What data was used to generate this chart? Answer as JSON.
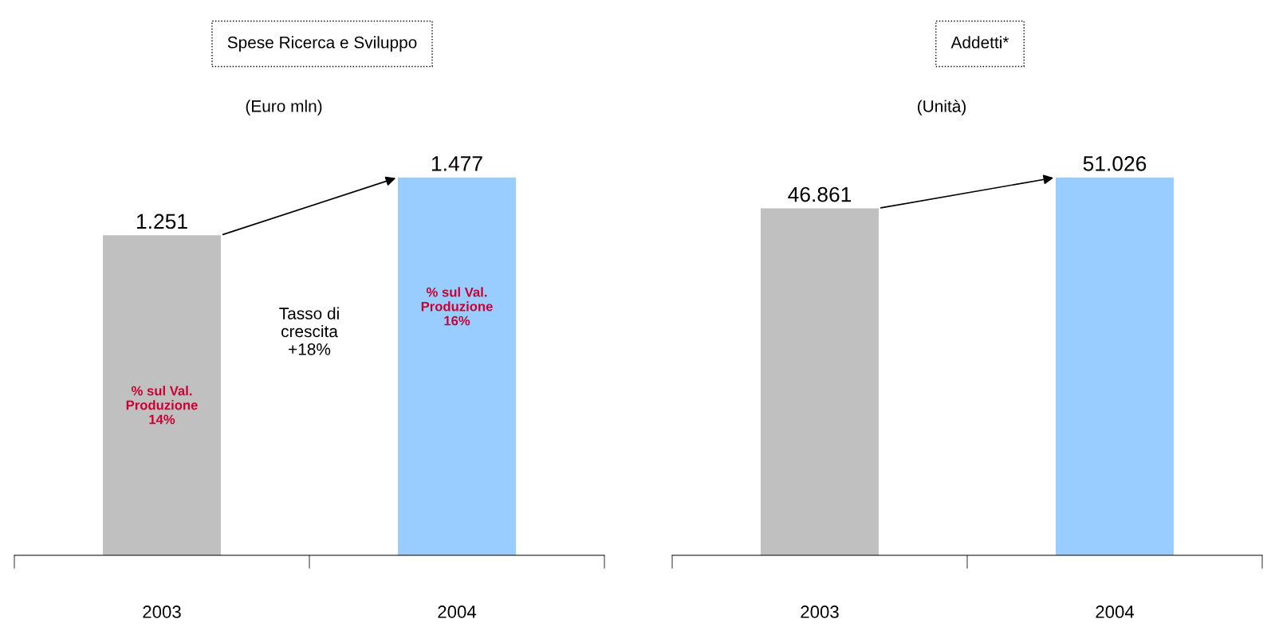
{
  "chart_data": [
    {
      "type": "bar",
      "title": "Spese Ricerca e Sviluppo",
      "subtitle": "(Euro mln)",
      "categories": [
        "2003",
        "2004"
      ],
      "values": [
        1251,
        1477
      ],
      "value_labels": [
        "1.251",
        "1.477"
      ],
      "colors": [
        "#c0c0c0",
        "#99ccff"
      ],
      "tick_labels": "x",
      "annotations": [
        "% sul Val.\nProduzione\n14%",
        "% sul Val.\nProduzione\n16%",
        "Tasso di\ncrescita\n+18%"
      ]
    },
    {
      "type": "bar",
      "title": "Addetti*",
      "subtitle": "(Unità)",
      "categories": [
        "2003",
        "2004"
      ],
      "values": [
        46861,
        51026
      ],
      "value_labels": [
        "46.861",
        "51.026"
      ],
      "colors": [
        "#c0c0c0",
        "#99ccff"
      ],
      "tick_labels": "x"
    }
  ]
}
